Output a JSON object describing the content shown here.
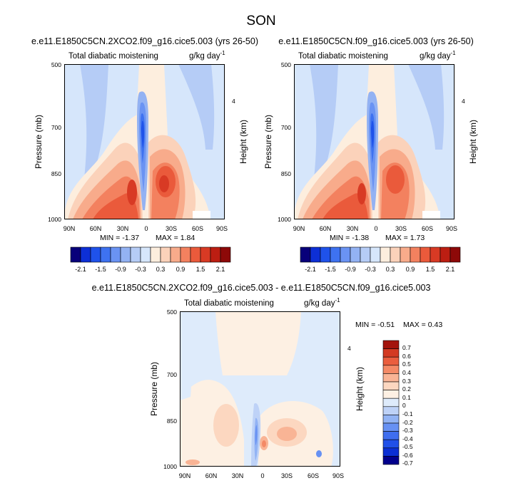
{
  "figure": {
    "title": "SON"
  },
  "chart_data": [
    {
      "type": "heatmap",
      "title": "e.e11.E1850C5CN.2XCO2.f09_g16.cice5.003 (yrs 26-50)",
      "subtitle_left": "Total diabatic moistening",
      "units": "g/kg day",
      "units_exp": "-1",
      "ylabel": "Pressure (mb)",
      "ylabel_right": "Height (km)",
      "x_ticks": [
        "90N",
        "60N",
        "30N",
        "0",
        "30S",
        "60S",
        "90S"
      ],
      "y_ticks": [
        "500",
        "700",
        "850",
        "1000"
      ],
      "y_ticks_right": [
        "4"
      ],
      "xlim": [
        "90N",
        "90S"
      ],
      "ylim": [
        1000,
        500
      ],
      "min_label": "MIN = -1.37",
      "max_label": "MAX =  1.84",
      "colorbar_labels": [
        "-2.1",
        "-1.5",
        "-0.9",
        "-0.3",
        "0.3",
        "0.9",
        "1.5",
        "2.1"
      ]
    },
    {
      "type": "heatmap",
      "title": "e.e11.E1850C5CN.f09_g16.cice5.003 (yrs 26-50)",
      "subtitle_left": "Total diabatic moistening",
      "units": "g/kg day",
      "units_exp": "-1",
      "ylabel": "Pressure (mb)",
      "ylabel_right": "Height (km)",
      "x_ticks": [
        "90N",
        "60N",
        "30N",
        "0",
        "30S",
        "60S",
        "90S"
      ],
      "y_ticks": [
        "500",
        "700",
        "850",
        "1000"
      ],
      "y_ticks_right": [
        "4"
      ],
      "xlim": [
        "90N",
        "90S"
      ],
      "ylim": [
        1000,
        500
      ],
      "min_label": "MIN = -1.38",
      "max_label": "MAX =  1.73",
      "colorbar_labels": [
        "-2.1",
        "-1.5",
        "-0.9",
        "-0.3",
        "0.3",
        "0.9",
        "1.5",
        "2.1"
      ]
    },
    {
      "type": "heatmap",
      "title": "e.e11.E1850C5CN.2XCO2.f09_g16.cice5.003 - e.e11.E1850C5CN.f09_g16.cice5.003",
      "subtitle_left": "Total diabatic moistening",
      "units": "g/kg day",
      "units_exp": "-1",
      "ylabel": "Pressure (mb)",
      "ylabel_right": "Height (km)",
      "x_ticks": [
        "90N",
        "60N",
        "30N",
        "0",
        "30S",
        "60S",
        "90S"
      ],
      "y_ticks": [
        "500",
        "700",
        "850",
        "1000"
      ],
      "y_ticks_right": [
        "4"
      ],
      "xlim": [
        "90N",
        "90S"
      ],
      "ylim": [
        1000,
        500
      ],
      "min_label": "MIN = -0.51",
      "max_label": "MAX =  0.43",
      "colorbar_labels": [
        "0.7",
        "0.6",
        "0.5",
        "0.4",
        "0.3",
        "0.2",
        "0.1",
        "0",
        "-0.1",
        "-0.2",
        "-0.3",
        "-0.4",
        "-0.5",
        "-0.6",
        "-0.7"
      ]
    }
  ],
  "colors": {
    "scale": [
      "#08007a",
      "#0d2fd6",
      "#1f52ea",
      "#3e72f0",
      "#6a93f3",
      "#93b2f3",
      "#b5ccf6",
      "#d6e6fb",
      "#fdeede",
      "#fbd2ba",
      "#f8ab8b",
      "#f3815f",
      "#ea5a3b",
      "#d83a24",
      "#bc1e12",
      "#8d0908"
    ],
    "diff_scale": [
      "#02008c",
      "#0b2fd4",
      "#2050e8",
      "#3f6eef",
      "#6791f3",
      "#92b3f4",
      "#bed2f7",
      "#deebfb",
      "#fdf0e3",
      "#fcd7c0",
      "#f9b495",
      "#f48a66",
      "#ea5e3e",
      "#d33a22",
      "#a3140c"
    ]
  }
}
